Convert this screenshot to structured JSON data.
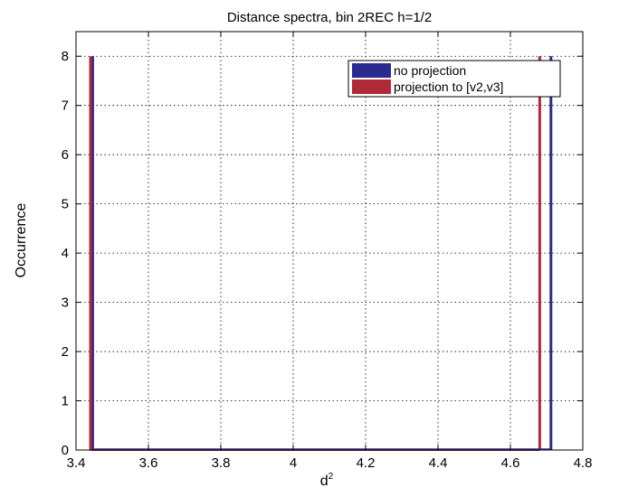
{
  "chart_data": {
    "type": "bar",
    "title": "Distance spectra, bin 2REC h=1/2",
    "xlabel": "d",
    "xlabel_superscript": "2",
    "ylabel": "Occurrence",
    "xlim": [
      3.4,
      4.8
    ],
    "ylim": [
      0,
      8.5
    ],
    "xticks": [
      3.4,
      3.6,
      3.8,
      4.0,
      4.2,
      4.4,
      4.6,
      4.8
    ],
    "xtick_labels": [
      "3.4",
      "3.6",
      "3.8",
      "4",
      "4.2",
      "4.4",
      "4.6",
      "4.8"
    ],
    "yticks": [
      0,
      1,
      2,
      3,
      4,
      5,
      6,
      7,
      8
    ],
    "ytick_labels": [
      "0",
      "1",
      "2",
      "3",
      "4",
      "5",
      "6",
      "7",
      "8"
    ],
    "grid": true,
    "legend_position": "top-right",
    "series": [
      {
        "name": "no projection",
        "color": "#2b2b8f",
        "points": [
          {
            "x": 3.446,
            "y": 8
          },
          {
            "x": 4.712,
            "y": 8
          }
        ]
      },
      {
        "name": "projection to [v2,v3]",
        "color": "#b02a37",
        "points": [
          {
            "x": 3.44,
            "y": 8
          },
          {
            "x": 4.681,
            "y": 8
          }
        ]
      }
    ]
  }
}
